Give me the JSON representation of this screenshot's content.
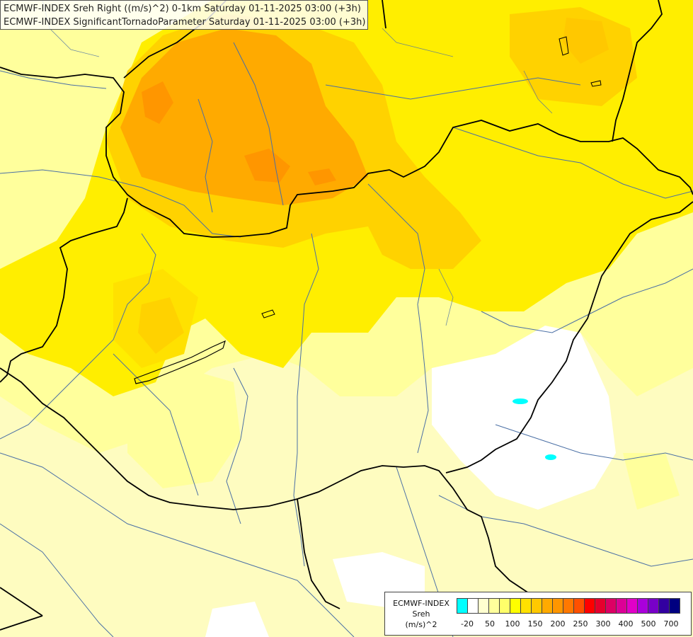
{
  "title": {
    "line1": "ECMWF-INDEX Sreh Right ((m/s)^2) 0-1km Saturday 01-11-2025 03:00 (+3h)",
    "line2": "ECMWF-INDEX SignificantTornadoParameter Saturday 01-11-2025 03:00 (+3h)"
  },
  "legend": {
    "model": "ECMWF-INDEX",
    "parameter": "Sreh",
    "unit": "(m/s)^2",
    "colors": [
      "#00ffff",
      "#ffffff",
      "#ffffd0",
      "#ffff9c",
      "#ffff6a",
      "#ffff00",
      "#ffe100",
      "#ffc800",
      "#ffaa00",
      "#ff9600",
      "#ff7800",
      "#ff5000",
      "#ff0000",
      "#e6002d",
      "#dc0064",
      "#dc0096",
      "#e100c8",
      "#aa00dc",
      "#7800c8",
      "#3200a0",
      "#000080"
    ],
    "tick_labels": [
      "-20",
      "50",
      "100",
      "150",
      "200",
      "250",
      "300",
      "400",
      "500",
      "700"
    ]
  },
  "colors": {
    "white_zone": "#ffffff",
    "pale": "#fefcc0",
    "light_yellow": "#ffff9c",
    "yellow": "#ffee00",
    "gold": "#ffd200",
    "orange": "#ffaa00",
    "dark_orange": "#ff8800",
    "cyan": "#00ffff",
    "river": "#4a6fa5",
    "border": "#000000"
  }
}
